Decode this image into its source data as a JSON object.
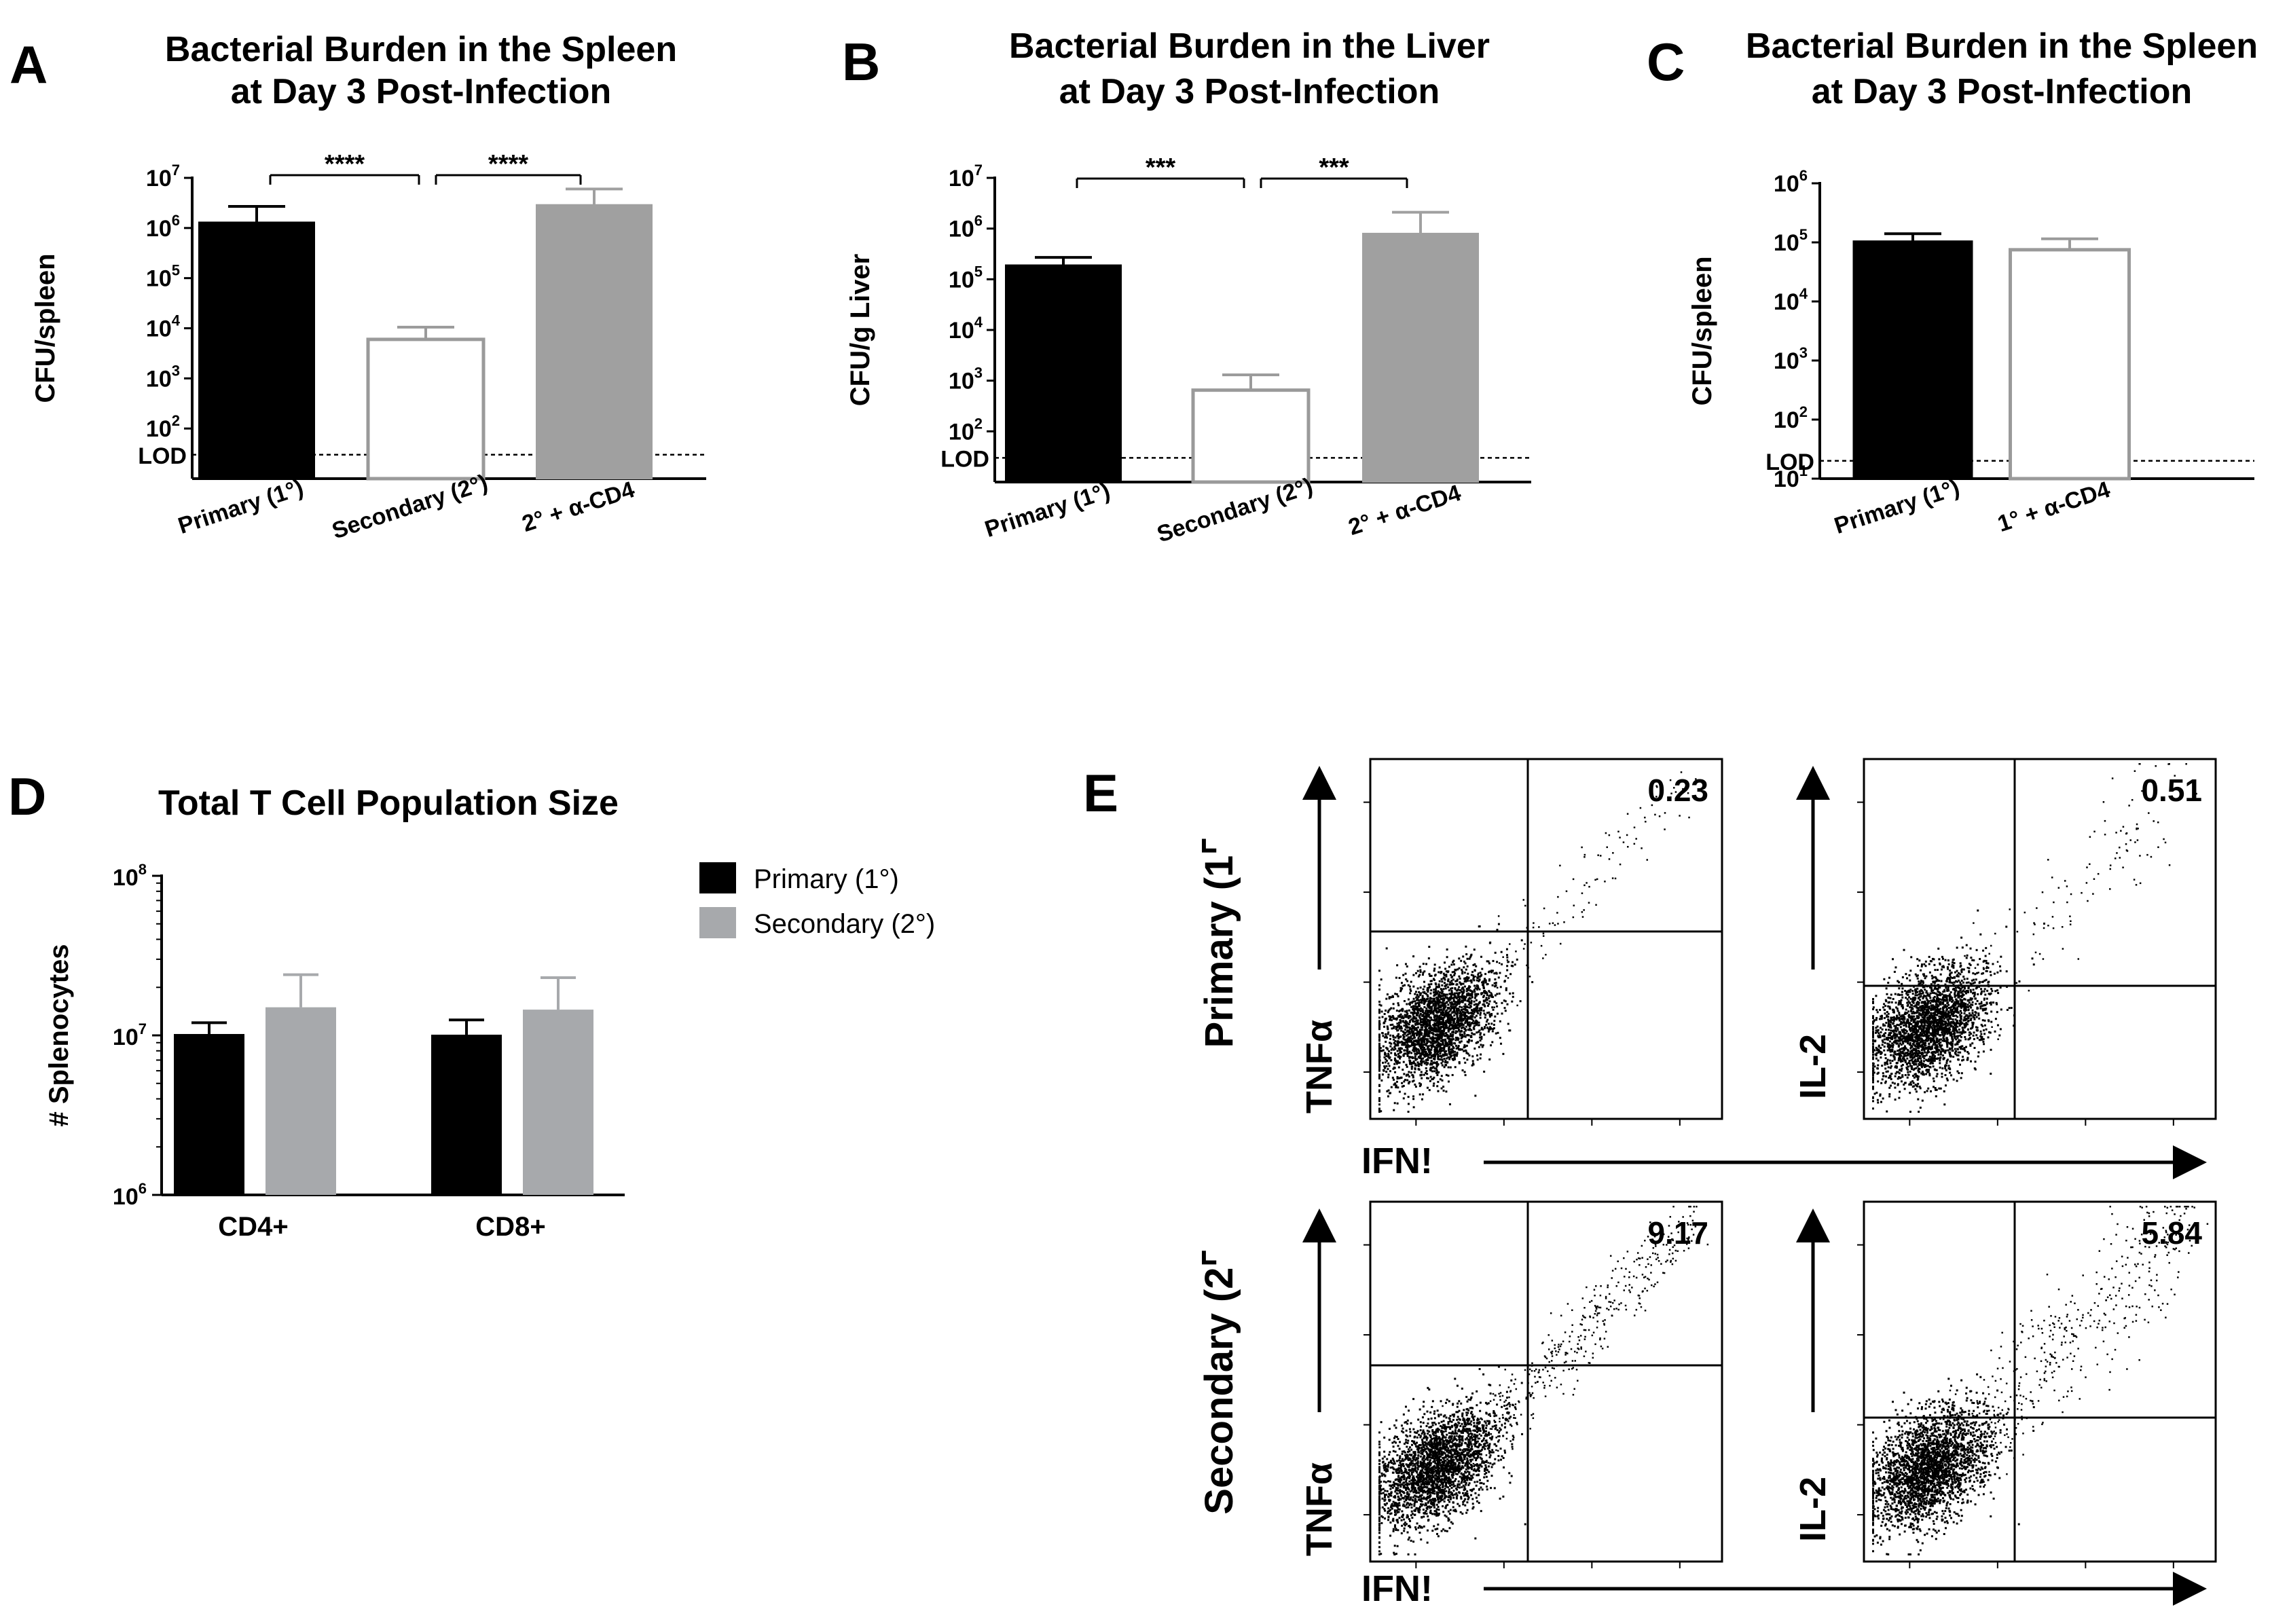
{
  "colors": {
    "primary": "#000000",
    "secondary": "#ffffff",
    "anti_cd4": "#a0a0a0",
    "legend_secondary": "#a7a9ac",
    "outline_secondary": "#9a9a9a"
  },
  "chart_data": [
    {
      "panel": "A",
      "type": "bar",
      "scale": "log",
      "title_line1": "Bacterial Burden in the Spleen",
      "title_line2": "at Day 3 Post-Infection",
      "ylabel": "CFU/spleen",
      "categories": [
        "Primary (1°)",
        "Secondary (2°)",
        "2° + α-CD4"
      ],
      "values": [
        1300000,
        6000,
        2900000
      ],
      "errors": [
        2700000,
        10500,
        6000000
      ],
      "ylim": [
        10,
        10000000
      ],
      "yticks": [
        {
          "base": "10",
          "exp": "2",
          "value": 100
        },
        {
          "base": "10",
          "exp": "3",
          "value": 1000
        },
        {
          "base": "10",
          "exp": "4",
          "value": 10000
        },
        {
          "base": "10",
          "exp": "5",
          "value": 100000
        },
        {
          "base": "10",
          "exp": "6",
          "value": 1000000
        },
        {
          "base": "10",
          "exp": "7",
          "value": 10000000
        }
      ],
      "lod_label": "LOD",
      "lod_value": 30,
      "significance": [
        {
          "from": 0,
          "to": 1,
          "label": "****"
        },
        {
          "from": 1,
          "to": 2,
          "label": "****"
        }
      ]
    },
    {
      "panel": "B",
      "type": "bar",
      "scale": "log",
      "title_line1": "Bacterial Burden in the Liver",
      "title_line2": "at Day 3 Post-Infection",
      "ylabel": "CFU/g Liver",
      "categories": [
        "Primary (1°)",
        "Secondary (2°)",
        "2° + α-CD4"
      ],
      "values": [
        190000,
        650,
        800000
      ],
      "errors": [
        270000,
        1300,
        2100000
      ],
      "ylim": [
        10,
        10000000
      ],
      "yticks": [
        {
          "base": "10",
          "exp": "2",
          "value": 100
        },
        {
          "base": "10",
          "exp": "3",
          "value": 1000
        },
        {
          "base": "10",
          "exp": "4",
          "value": 10000
        },
        {
          "base": "10",
          "exp": "5",
          "value": 100000
        },
        {
          "base": "10",
          "exp": "6",
          "value": 1000000
        },
        {
          "base": "10",
          "exp": "7",
          "value": 10000000
        }
      ],
      "lod_label": "LOD",
      "lod_value": 30,
      "significance": [
        {
          "from": 0,
          "to": 1,
          "label": "***"
        },
        {
          "from": 1,
          "to": 2,
          "label": "***"
        }
      ]
    },
    {
      "panel": "C",
      "type": "bar",
      "scale": "log",
      "title_line1": "Bacterial Burden in the Spleen",
      "title_line2": "at Day 3 Post-Infection",
      "ylabel": "CFU/spleen",
      "categories": [
        "Primary (1°)",
        "1° + α-CD4"
      ],
      "values": [
        105000,
        75000
      ],
      "errors": [
        140000,
        115000
      ],
      "ylim": [
        10,
        1000000
      ],
      "yticks": [
        {
          "base": "10",
          "exp": "1",
          "value": 10
        },
        {
          "base": "10",
          "exp": "2",
          "value": 100
        },
        {
          "base": "10",
          "exp": "3",
          "value": 1000
        },
        {
          "base": "10",
          "exp": "4",
          "value": 10000
        },
        {
          "base": "10",
          "exp": "5",
          "value": 100000
        },
        {
          "base": "10",
          "exp": "6",
          "value": 1000000
        }
      ],
      "lod_label": "LOD",
      "lod_value": 20,
      "significance": []
    },
    {
      "panel": "D",
      "type": "bar",
      "scale": "log",
      "title": "Total T Cell Population Size",
      "ylabel": "# Splenocytes",
      "categories": [
        "CD4+",
        "CD8+"
      ],
      "series": [
        {
          "name": "Primary (1°)",
          "values": [
            10200000,
            10100000
          ],
          "errors": [
            12000000,
            12500000
          ]
        },
        {
          "name": "Secondary (2°)",
          "values": [
            15000000,
            14500000
          ],
          "errors": [
            24000000,
            23000000
          ]
        }
      ],
      "ylim": [
        1000000,
        100000000
      ],
      "yticks": [
        {
          "base": "10",
          "exp": "6",
          "value": 1000000
        },
        {
          "base": "10",
          "exp": "7",
          "value": 10000000
        },
        {
          "base": "10",
          "exp": "8",
          "value": 100000000
        }
      ],
      "legend_position": "right"
    },
    {
      "panel": "E",
      "type": "scatter",
      "description": "flow cytometry dot plots",
      "row_labels": [
        "Primary (1⌜",
        "Secondary (2⌜"
      ],
      "x_axis_label": "IFN!",
      "y_axis_labels": [
        "TNFα",
        "IL-2"
      ],
      "quadrant_values": [
        [
          "0.23",
          "0.51"
        ],
        [
          "9.17",
          "5.84"
        ]
      ]
    }
  ]
}
